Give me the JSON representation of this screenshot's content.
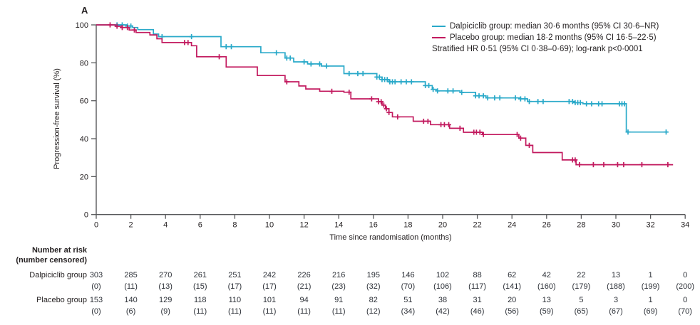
{
  "panel_label": "A",
  "colors": {
    "dalpiciclib": "#29a9c9",
    "placebo": "#c2195e",
    "axis": "#58595b",
    "text": "#231f20"
  },
  "y_axis": {
    "title": "Progression-free survival (%)",
    "ticks": [
      0,
      20,
      40,
      60,
      80,
      100
    ]
  },
  "x_axis": {
    "title": "Time since randomisation (months)",
    "ticks": [
      0,
      2,
      4,
      6,
      8,
      10,
      12,
      14,
      16,
      18,
      20,
      22,
      24,
      26,
      28,
      30,
      32,
      34
    ]
  },
  "legend": {
    "entries": [
      {
        "label": "Dalpiciclib group: median 30·6 months (95% CI 30·6–NR)",
        "color_key": "dalpiciclib"
      },
      {
        "label": "Placebo group: median 18·2 months (95% CI 16·5–22·5)",
        "color_key": "placebo"
      }
    ],
    "note": "Stratified HR 0·51 (95% CI 0·38–0·69); log-rank p<0·0001"
  },
  "chart_data": {
    "type": "line",
    "subtype": "kaplan-meier-step",
    "title": "",
    "xlabel": "Time since randomisation (months)",
    "ylabel": "Progression-free survival (%)",
    "xlim": [
      0,
      34
    ],
    "ylim": [
      0,
      100
    ],
    "grid": false,
    "legend_position": "top-right",
    "series": [
      {
        "name": "Dalpiciclib group",
        "color_key": "dalpiciclib",
        "median_months": "30·6",
        "ci": "30·6–NR",
        "steps": [
          [
            0,
            100
          ],
          [
            1.8,
            99.4
          ],
          [
            2.1,
            98.6
          ],
          [
            2.4,
            97.5
          ],
          [
            3.3,
            95.2
          ],
          [
            3.6,
            93.8
          ],
          [
            7.2,
            88.5
          ],
          [
            9.5,
            85.3
          ],
          [
            10.9,
            82.5
          ],
          [
            11.4,
            80.5
          ],
          [
            12.2,
            79.4
          ],
          [
            13.0,
            78.3
          ],
          [
            14.3,
            74.3
          ],
          [
            16.2,
            72.5
          ],
          [
            16.5,
            71.2
          ],
          [
            16.9,
            70.0
          ],
          [
            19.0,
            68.0
          ],
          [
            19.4,
            66.0
          ],
          [
            19.7,
            65.2
          ],
          [
            21.0,
            64.4
          ],
          [
            21.9,
            62.6
          ],
          [
            22.5,
            61.5
          ],
          [
            24.5,
            61.0
          ],
          [
            24.9,
            59.6
          ],
          [
            27.6,
            59.0
          ],
          [
            28.1,
            58.4
          ],
          [
            30.6,
            43.5
          ],
          [
            33.0,
            43.5
          ]
        ],
        "censor_marks": [
          1.2,
          1.5,
          1.8,
          2.0,
          3.8,
          5.5,
          7.5,
          7.8,
          10.4,
          11.0,
          11.2,
          12.0,
          12.4,
          12.9,
          13.3,
          14.6,
          15.1,
          15.4,
          16.2,
          16.35,
          16.5,
          16.65,
          16.8,
          16.95,
          17.1,
          17.25,
          17.6,
          17.9,
          18.2,
          19.0,
          19.2,
          19.45,
          19.7,
          20.3,
          20.6,
          21.1,
          21.9,
          22.1,
          22.35,
          22.6,
          23.0,
          23.3,
          24.2,
          24.5,
          24.75,
          25.0,
          25.5,
          25.8,
          27.3,
          27.5,
          27.65,
          27.8,
          27.95,
          28.3,
          28.6,
          29.0,
          29.2,
          30.2,
          30.35,
          30.5,
          30.7,
          32.9
        ]
      },
      {
        "name": "Placebo group",
        "color_key": "placebo",
        "median_months": "18·2",
        "ci": "16·5–22·5",
        "steps": [
          [
            0,
            100
          ],
          [
            1.1,
            99.3
          ],
          [
            1.5,
            98.6
          ],
          [
            1.9,
            97.3
          ],
          [
            2.3,
            96.0
          ],
          [
            3.1,
            94.7
          ],
          [
            3.5,
            92.7
          ],
          [
            3.8,
            90.7
          ],
          [
            5.5,
            89.0
          ],
          [
            5.8,
            83.2
          ],
          [
            7.5,
            77.8
          ],
          [
            9.3,
            73.3
          ],
          [
            10.9,
            70.0
          ],
          [
            11.7,
            67.8
          ],
          [
            12.1,
            66.2
          ],
          [
            12.9,
            65.0
          ],
          [
            14.3,
            64.5
          ],
          [
            14.7,
            61.0
          ],
          [
            16.3,
            59.5
          ],
          [
            16.5,
            57.7
          ],
          [
            16.7,
            55.8
          ],
          [
            16.9,
            53.8
          ],
          [
            17.1,
            51.5
          ],
          [
            18.3,
            49.2
          ],
          [
            19.3,
            47.4
          ],
          [
            20.4,
            45.5
          ],
          [
            21.2,
            43.4
          ],
          [
            22.3,
            42.2
          ],
          [
            24.4,
            40.3
          ],
          [
            24.8,
            36.5
          ],
          [
            25.2,
            32.7
          ],
          [
            26.9,
            28.8
          ],
          [
            27.7,
            26.3
          ],
          [
            33.3,
            26.3
          ]
        ],
        "censor_marks": [
          0.8,
          1.2,
          1.5,
          1.8,
          2.2,
          5.1,
          5.3,
          7.1,
          11.0,
          13.6,
          14.6,
          15.9,
          16.3,
          16.45,
          16.6,
          16.75,
          16.9,
          17.4,
          18.9,
          19.15,
          19.9,
          20.1,
          20.35,
          21.0,
          21.8,
          21.95,
          22.15,
          22.35,
          24.3,
          24.5,
          25.0,
          27.5,
          27.65,
          27.9,
          28.7,
          29.3,
          30.1,
          30.45,
          31.5,
          33.0
        ]
      }
    ]
  },
  "risk_table": {
    "header_line1": "Number at risk",
    "header_line2": "(number censored)",
    "time_points": [
      0,
      2,
      4,
      6,
      8,
      10,
      12,
      14,
      16,
      18,
      20,
      22,
      24,
      26,
      28,
      30,
      32,
      34
    ],
    "rows": [
      {
        "label": "Dalpiciclib group",
        "at_risk": [
          "303",
          "285",
          "270",
          "261",
          "251",
          "242",
          "226",
          "216",
          "195",
          "146",
          "102",
          "88",
          "62",
          "42",
          "22",
          "13",
          "1",
          "0"
        ],
        "censored": [
          "(0)",
          "(11)",
          "(13)",
          "(15)",
          "(17)",
          "(17)",
          "(21)",
          "(23)",
          "(32)",
          "(70)",
          "(106)",
          "(117)",
          "(141)",
          "(160)",
          "(179)",
          "(188)",
          "(199)",
          "(200)"
        ]
      },
      {
        "label": "Placebo group",
        "at_risk": [
          "153",
          "140",
          "129",
          "118",
          "110",
          "101",
          "94",
          "91",
          "82",
          "51",
          "38",
          "31",
          "20",
          "13",
          "5",
          "3",
          "1",
          "0"
        ],
        "censored": [
          "(0)",
          "(6)",
          "(9)",
          "(11)",
          "(11)",
          "(11)",
          "(11)",
          "(11)",
          "(12)",
          "(34)",
          "(42)",
          "(46)",
          "(56)",
          "(59)",
          "(65)",
          "(67)",
          "(69)",
          "(70)"
        ]
      }
    ]
  }
}
